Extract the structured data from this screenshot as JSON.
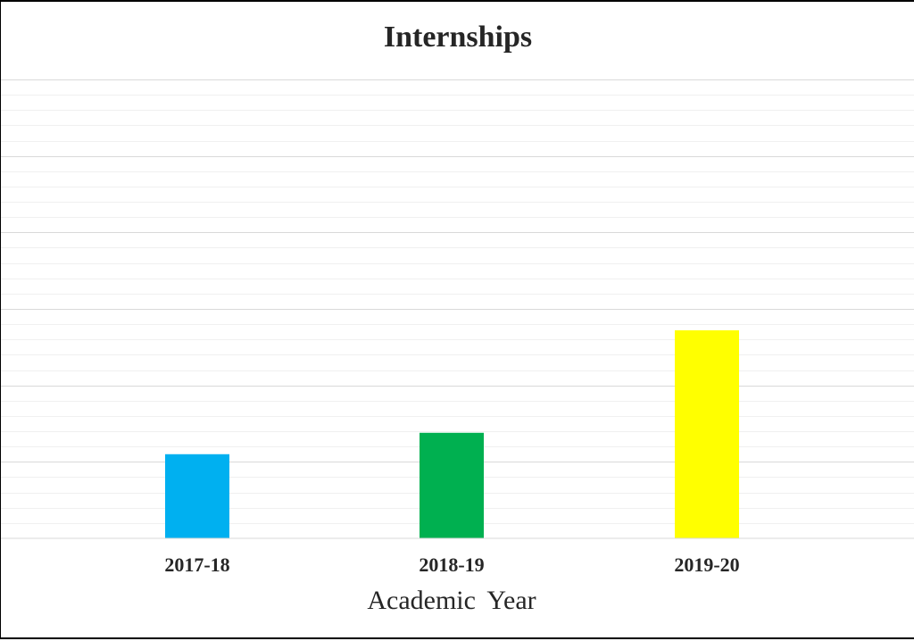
{
  "chart_data": {
    "type": "bar",
    "title": "Internships",
    "xlabel": "Academic Year",
    "ylabel": "",
    "categories": [
      "2017-18",
      "2018-19",
      "2019-20"
    ],
    "values": [
      55,
      69,
      136
    ],
    "ylim": [
      0,
      300
    ],
    "colors": [
      "#00B0F0",
      "#00B050",
      "#FFFF00"
    ],
    "grid": true,
    "legend": "none"
  }
}
